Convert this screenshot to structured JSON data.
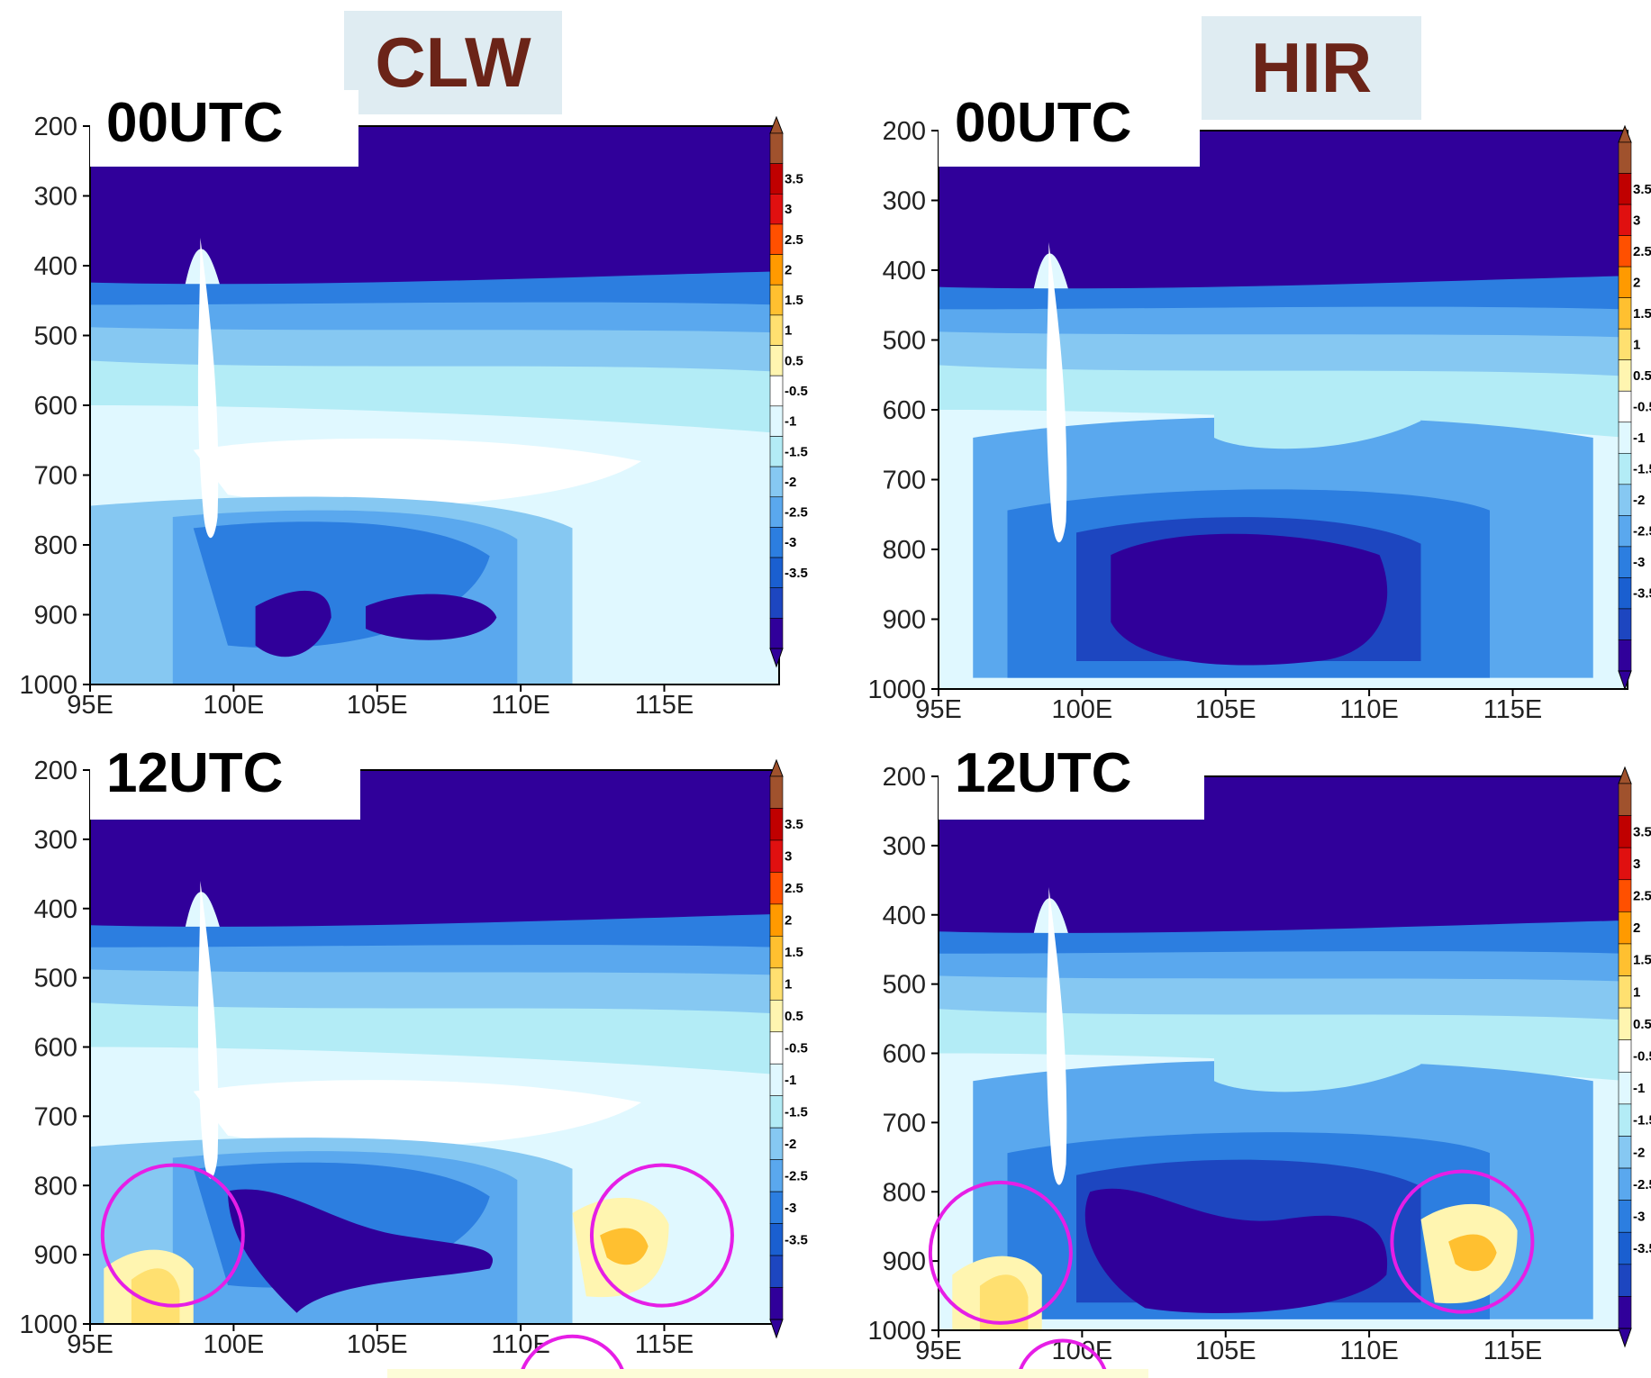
{
  "column_titles": {
    "left": "CLW",
    "right": "HIR"
  },
  "colors": {
    "title_text": "#6b2418",
    "title_bg": "#dfecf2",
    "highlight_circle": "#e61ee6"
  },
  "colorbar": {
    "levels": [
      "3.5",
      "3",
      "2.5",
      "2",
      "1.5",
      "1",
      "0.5",
      "-0.5",
      "-1",
      "-1.5",
      "-2",
      "-2.5",
      "-3",
      "-3.5"
    ],
    "colors": [
      "#a0522d",
      "#c00000",
      "#e01010",
      "#ff5000",
      "#ff9a00",
      "#ffc030",
      "#ffe070",
      "#fff5b0",
      "#ffffff",
      "#e0f8ff",
      "#b3ecf6",
      "#86c8f2",
      "#5aa8ee",
      "#2c7ee0",
      "#1a5fd0",
      "#1d46c0",
      "#30009a"
    ]
  },
  "chart_data": [
    {
      "type": "heatmap",
      "title": "CLW",
      "panel_label": "00UTC",
      "xlabel": "",
      "ylabel": "",
      "x_ticks": [
        "95E",
        "100E",
        "105E",
        "110E",
        "115E"
      ],
      "y_ticks": [
        "200",
        "300",
        "400",
        "500",
        "600",
        "700",
        "800",
        "900",
        "1000"
      ],
      "xlim": [
        95,
        119
      ],
      "ylim": [
        1000,
        200
      ],
      "colorbar_range": [
        -3.5,
        3.5
      ],
      "features": [
        {
          "region": "upper troposphere 200-500 hPa",
          "value": -3.5
        },
        {
          "region": "mid-level 650-750 hPa, 103E-112E",
          "value": 0
        },
        {
          "region": "low-level core 880-950 hPa, 102E-109E",
          "value": -3.5
        },
        {
          "region": "weak positive near 99E, 700 hPa",
          "value": 0.7
        }
      ]
    },
    {
      "type": "heatmap",
      "title": "HIR",
      "panel_label": "00UTC",
      "xlabel": "",
      "ylabel": "",
      "x_ticks": [
        "95E",
        "100E",
        "105E",
        "110E",
        "115E"
      ],
      "y_ticks": [
        "200",
        "300",
        "400",
        "500",
        "600",
        "700",
        "800",
        "900",
        "1000"
      ],
      "xlim": [
        95,
        119
      ],
      "ylim": [
        1000,
        200
      ],
      "colorbar_range": [
        -3.5,
        3.5
      ],
      "colorbar_labels": [
        "3.5",
        "3",
        "2.5",
        "2",
        "1.5",
        "1",
        "0.5",
        "-0.5",
        "-1",
        "-1.5",
        "-2",
        "-2.5",
        "-3",
        "-3.5"
      ],
      "features": [
        {
          "region": "upper troposphere 200-500 hPa",
          "value": -3.5
        },
        {
          "region": "low-level core 800-970 hPa, 101E-110E",
          "value": -3.5
        }
      ]
    },
    {
      "type": "heatmap",
      "title": "CLW",
      "panel_label": "12UTC",
      "xlabel": "",
      "ylabel": "",
      "x_ticks": [
        "95E",
        "100E",
        "105E",
        "110E",
        "115E"
      ],
      "y_ticks": [
        "200",
        "300",
        "400",
        "500",
        "600",
        "700",
        "800",
        "900",
        "1000"
      ],
      "xlim": [
        95,
        119
      ],
      "ylim": [
        1000,
        200
      ],
      "colorbar_range": [
        -3.5,
        3.5
      ],
      "features": [
        {
          "region": "upper troposphere 200-500 hPa",
          "value": -3.5
        },
        {
          "region": "low-level core 830-950 hPa, 100E-108E",
          "value": -3.5
        },
        {
          "region": "positive near 97E, 950 hPa",
          "value": 1.5
        },
        {
          "region": "positive near 114E, 930 hPa",
          "value": 2
        }
      ]
    },
    {
      "type": "heatmap",
      "title": "HIR",
      "panel_label": "12UTC",
      "xlabel": "",
      "ylabel": "",
      "x_ticks": [
        "95E",
        "100E",
        "105E",
        "110E",
        "115E"
      ],
      "y_ticks": [
        "200",
        "300",
        "400",
        "500",
        "600",
        "700",
        "800",
        "900",
        "1000"
      ],
      "xlim": [
        95,
        119
      ],
      "ylim": [
        1000,
        200
      ],
      "colorbar_range": [
        -3.5,
        3.5
      ],
      "colorbar_labels": [
        "3.5",
        "3",
        "2.5",
        "2",
        "1.5",
        "1",
        "0.5",
        "-0.5",
        "-1",
        "-1.5",
        "-2",
        "-2.5",
        "-3",
        "-3.5"
      ],
      "features": [
        {
          "region": "upper troposphere 200-500 hPa",
          "value": -3.5
        },
        {
          "region": "low-level core 780-1000 hPa, 101E-110E",
          "value": -3.5
        },
        {
          "region": "positive near 97E, 970 hPa",
          "value": 2
        },
        {
          "region": "positive near 114E, 930 hPa",
          "value": 2
        }
      ]
    }
  ]
}
